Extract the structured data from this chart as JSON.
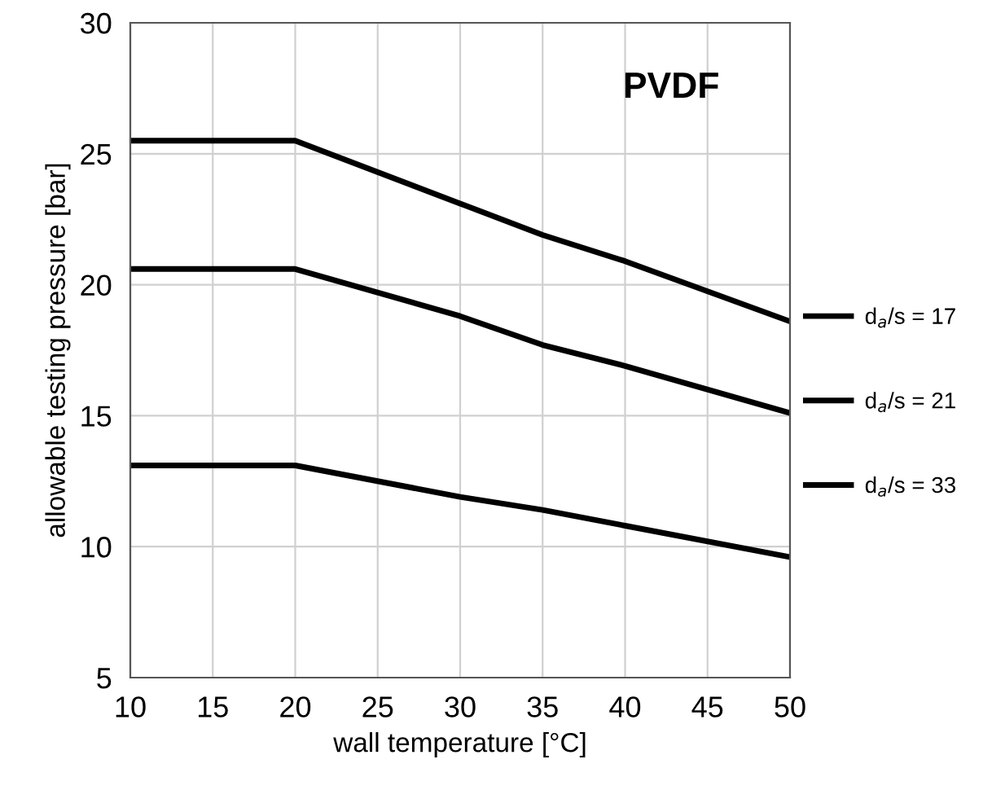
{
  "chart_data": {
    "type": "line",
    "xlabel": "wall temperature [°C]",
    "ylabel": "allowable testing pressure [bar]",
    "annotations": [
      "PVDF"
    ],
    "x": [
      10,
      20,
      30,
      35,
      40,
      50
    ],
    "series": [
      {
        "name": "d$_{a}$/s = 17",
        "color": "#000000",
        "values": [
          25.5,
          25.5,
          23.1,
          21.9,
          20.9,
          18.6
        ]
      },
      {
        "name": "d$_{a}$/s = 21",
        "color": "#000000",
        "values": [
          20.6,
          20.6,
          18.8,
          17.7,
          16.9,
          15.1
        ]
      },
      {
        "name": "d$_{a}$/s = 33",
        "color": "#000000",
        "values": [
          13.1,
          13.1,
          11.9,
          11.4,
          10.8,
          9.6
        ]
      }
    ],
    "xlim": [
      10,
      50
    ],
    "xticks": [
      10,
      15,
      20,
      25,
      30,
      35,
      40,
      45,
      50
    ],
    "ylim": [
      5,
      30
    ],
    "yticks": [
      5,
      10,
      15,
      20,
      25,
      30
    ],
    "grid": true,
    "legend": "right",
    "marker": "none",
    "line_style": "solid"
  }
}
